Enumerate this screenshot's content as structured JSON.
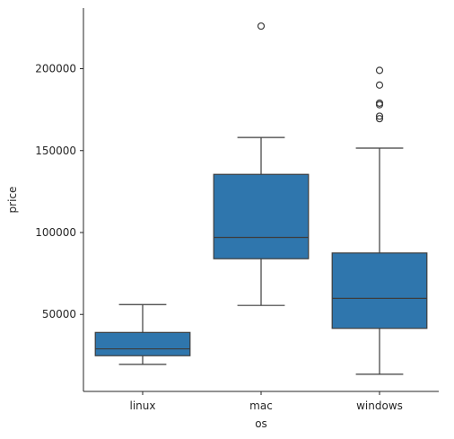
{
  "chart_data": {
    "type": "box",
    "title": "",
    "xlabel": "os",
    "ylabel": "price",
    "categories": [
      "linux",
      "mac",
      "windows"
    ],
    "ylim": [
      3000,
      237000
    ],
    "yticks": [
      50000,
      100000,
      150000,
      200000
    ],
    "grid": false,
    "legend": false,
    "color": "#2f76ad",
    "line_color": "#3d3d3d",
    "boxes": [
      {
        "category": "linux",
        "whisker_low": 19500,
        "q1": 24800,
        "median": 29000,
        "q3": 39000,
        "whisker_high": 56000,
        "outliers": []
      },
      {
        "category": "mac",
        "whisker_low": 55500,
        "q1": 84000,
        "median": 97000,
        "q3": 135500,
        "whisker_high": 158000,
        "outliers": [
          226000
        ]
      },
      {
        "category": "windows",
        "whisker_low": 13500,
        "q1": 41500,
        "median": 59800,
        "q3": 87500,
        "whisker_high": 151500,
        "outliers": [
          169500,
          171000,
          178000,
          179000,
          190000,
          199000
        ]
      }
    ]
  }
}
